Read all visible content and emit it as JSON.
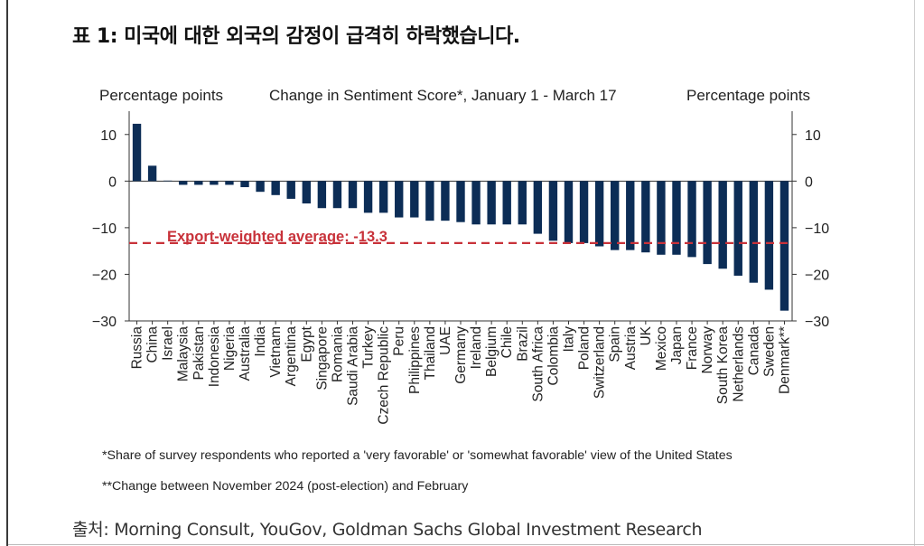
{
  "title": "표 1: 미국에 대한 외국의 감정이 급격히 하락했습니다.",
  "header": {
    "left_axis_label": "Percentage points",
    "center_label": "Change in Sentiment Score*, January 1 - March 17",
    "right_axis_label": "Percentage points"
  },
  "chart_data": {
    "type": "bar",
    "title": "Change in Sentiment Score*, January 1 - March 17",
    "ylabel": "Percentage points",
    "ylim": [
      -30,
      15
    ],
    "yticks": [
      10,
      0,
      -10,
      -20,
      -30
    ],
    "ytick_labels": [
      "10",
      "0",
      "−10",
      "−20",
      "−30"
    ],
    "categories": [
      "Russia",
      "China",
      "Israel",
      "Malaysia",
      "Pakistan",
      "Indonesia",
      "Nigeria",
      "Australia",
      "India",
      "Vietnam",
      "Argentina",
      "Egypt",
      "Singapore",
      "Romania",
      "Saudi Arabia",
      "Turkey",
      "Czech Republic",
      "Peru",
      "Philippines",
      "Thailand",
      "UAE",
      "Germany",
      "Ireland",
      "Belgium",
      "Chile",
      "Brazil",
      "South Africa",
      "Colombia",
      "Italy",
      "Poland",
      "Switzerland",
      "Spain",
      "Austria",
      "UK",
      "Mexico",
      "Japan",
      "France",
      "Norway",
      "South Korea",
      "Netherlands",
      "Canada",
      "Sweden",
      "Denmark**"
    ],
    "values": [
      12.3,
      3.3,
      0.1,
      -0.8,
      -0.8,
      -0.8,
      -0.8,
      -1.3,
      -2.3,
      -3.0,
      -3.8,
      -4.8,
      -5.8,
      -5.8,
      -5.8,
      -6.8,
      -6.8,
      -7.8,
      -7.8,
      -8.5,
      -8.5,
      -8.8,
      -9.3,
      -9.3,
      -9.3,
      -9.3,
      -11.3,
      -12.8,
      -13.3,
      -13.3,
      -14.0,
      -14.8,
      -14.8,
      -15.3,
      -15.8,
      -15.8,
      -16.3,
      -17.8,
      -18.8,
      -20.3,
      -21.8,
      -23.3,
      -27.8
    ],
    "series_color": "#0c2d56",
    "reference_line": {
      "label": "Export-weighted average: -13.3",
      "value": -13.3,
      "color": "#c8323a",
      "style": "dashed"
    },
    "legend": "none",
    "grid": false
  },
  "notes": {
    "note1": "*Share of survey respondents who reported a 'very favorable' or 'somewhat favorable' view of the United States",
    "note2": "**Change between November 2024 (post-election) and February"
  },
  "source": "출처: Morning Consult, YouGov, Goldman Sachs Global Investment Research"
}
